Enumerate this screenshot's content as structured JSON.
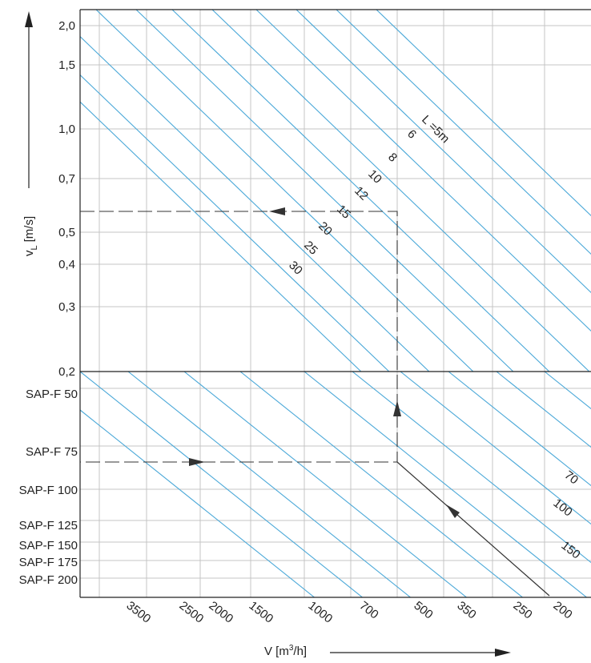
{
  "chart_data": {
    "type": "line",
    "upper_panel": {
      "y_axis_label": "v",
      "y_axis_label_sub": "L",
      "y_axis_label_unit": "[m/s]",
      "y_scale": "log",
      "y_ticks": [
        "2,0",
        "1,5",
        "1,0",
        "0,7",
        "0,5",
        "0,4",
        "0,3",
        "0,2"
      ],
      "series_label_prefix": "L =",
      "series_label_unit": "m",
      "series": [
        {
          "label": "5"
        },
        {
          "label": "6"
        },
        {
          "label": "8"
        },
        {
          "label": "10"
        },
        {
          "label": "12"
        },
        {
          "label": "15"
        },
        {
          "label": "20"
        },
        {
          "label": "25"
        },
        {
          "label": "30"
        }
      ]
    },
    "lower_panel": {
      "y_ticks": [
        "SAP-F 50",
        "SAP-F 75",
        "SAP-F 100",
        "SAP-F 125",
        "SAP-F 150",
        "SAP-F 175",
        "SAP-F 200"
      ],
      "series": [
        {
          "label": "70"
        },
        {
          "label": "100"
        },
        {
          "label": "150"
        }
      ]
    },
    "x_axis": {
      "label_main": "V [m",
      "label_sup": "3",
      "label_end": "/h]",
      "scale": "reverse-log",
      "ticks": [
        "3500",
        "2500",
        "2000",
        "1500",
        "1000",
        "700",
        "500",
        "350",
        "250",
        "200"
      ]
    },
    "example_reading": {
      "v_L": "0,58",
      "L": "25",
      "duct": "SAP-F 75"
    },
    "grid": true,
    "colors": {
      "lines": "#4aa8d8",
      "grid": "#c4c4c4",
      "axis": "#222222",
      "path": "#333333"
    }
  }
}
